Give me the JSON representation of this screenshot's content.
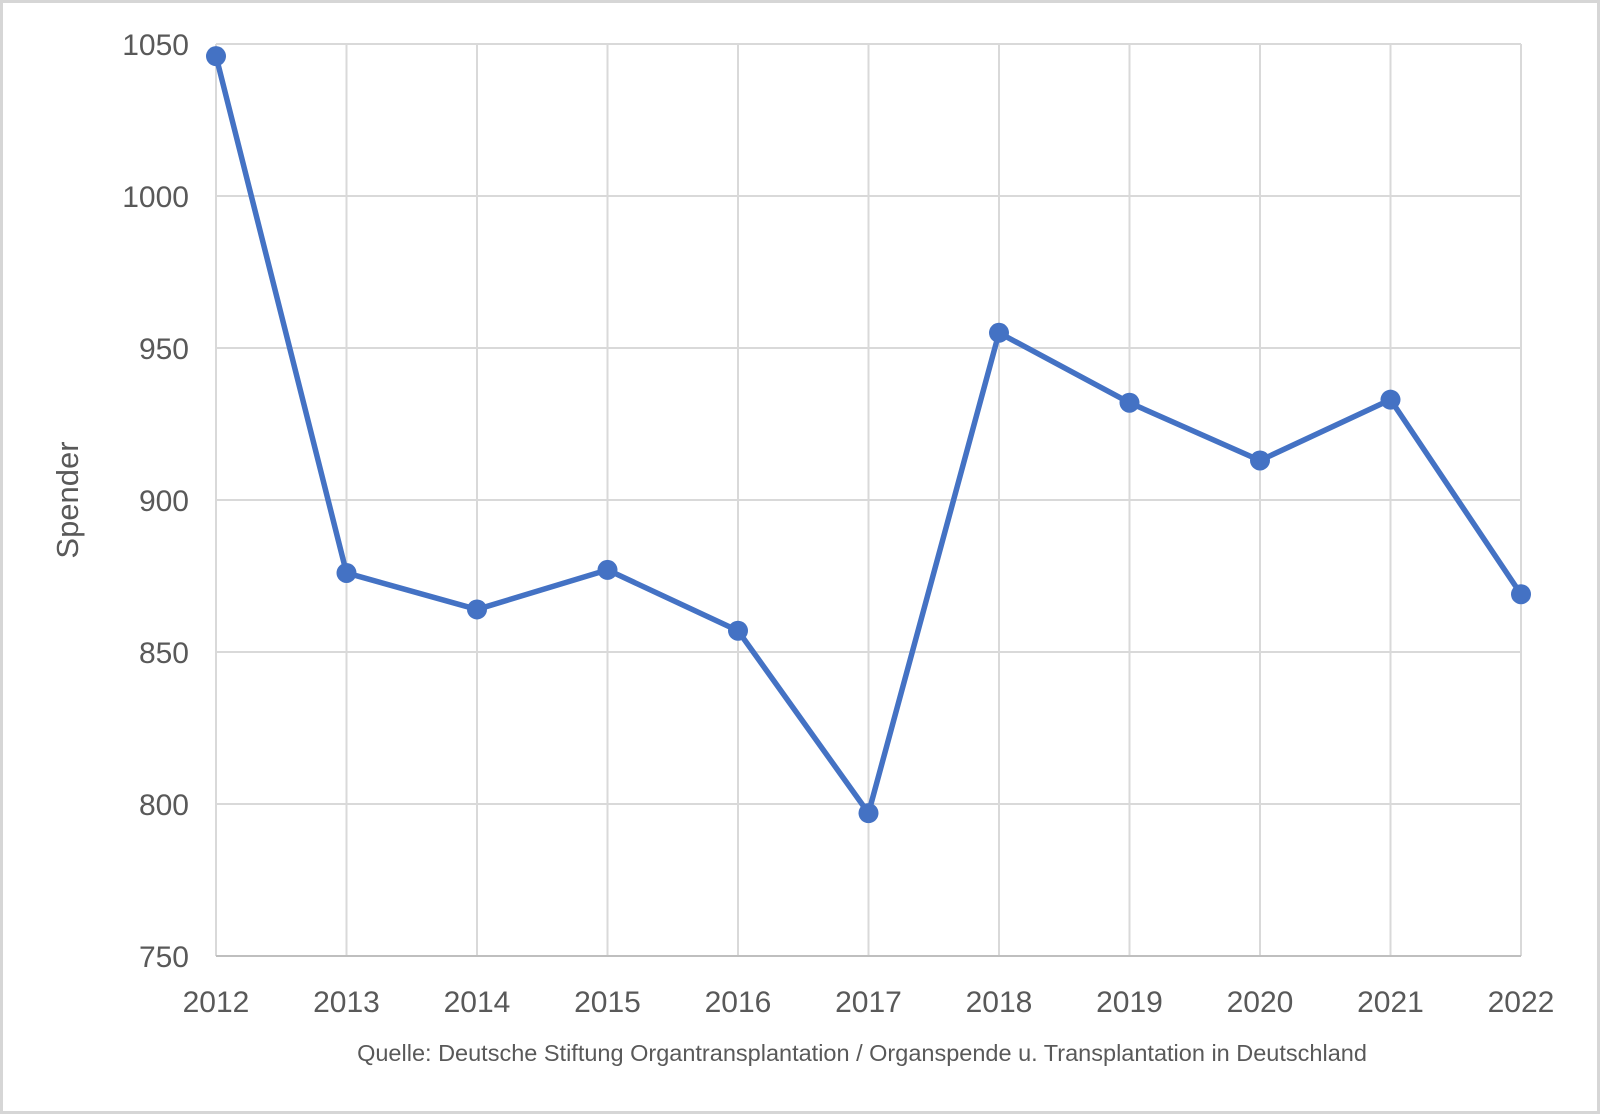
{
  "chart_data": {
    "type": "line",
    "categories": [
      "2012",
      "2013",
      "2014",
      "2015",
      "2016",
      "2017",
      "2018",
      "2019",
      "2020",
      "2021",
      "2022"
    ],
    "series": [
      {
        "name": "Spender",
        "values": [
          1046,
          876,
          864,
          877,
          857,
          797,
          955,
          932,
          913,
          933,
          869
        ]
      }
    ],
    "title": "",
    "xlabel": "",
    "ylabel": "Spender",
    "ylim": [
      750,
      1050
    ],
    "ytick_step": 50,
    "yticks": [
      750,
      800,
      850,
      900,
      950,
      1000,
      1050
    ],
    "grid": "on",
    "legend": "none",
    "marker": "circle",
    "source_note": "Quelle: Deutsche Stiftung Organtransplantation / Organspende u. Transplantation in Deutschland"
  },
  "colors": {
    "line": "#4472C4",
    "marker": "#4472C4",
    "grid": "#D9D9D9",
    "axis": "#BFBFBF",
    "text": "#595959",
    "background": "#FFFFFF",
    "border": "#D6D6D6"
  }
}
